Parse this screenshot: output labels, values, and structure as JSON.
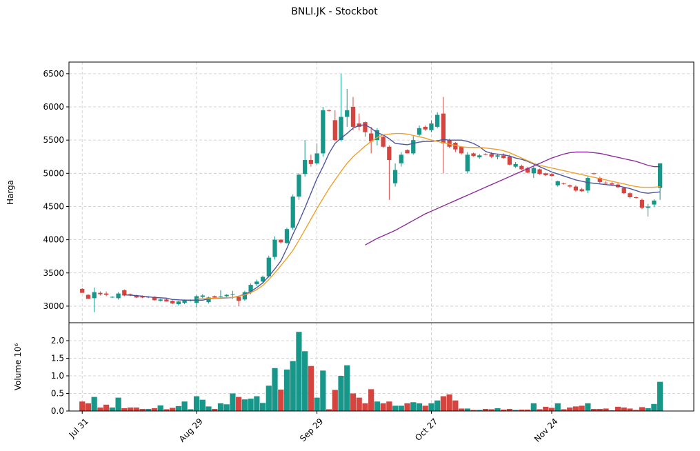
{
  "title": "BNLI.JK - Stockbot",
  "chart_data": [
    {
      "type": "candlestick",
      "ylabel": "Harga",
      "grid": true,
      "ylim": [
        2750,
        6675
      ],
      "yticks": [
        3000,
        3500,
        4000,
        4500,
        5000,
        5500,
        6000,
        6500
      ],
      "xlim": [
        -2.2,
        101.6
      ],
      "xticks": [
        {
          "value": 0,
          "label": "Jul 31"
        },
        {
          "value": 19,
          "label": "Aug 29"
        },
        {
          "value": 39,
          "label": "Sep 29"
        },
        {
          "value": 58,
          "label": "Oct 27"
        },
        {
          "value": 78,
          "label": "Nov 24"
        }
      ],
      "up_color": "#17968a",
      "down_color": "#d6443f",
      "open": [
        3260,
        3170,
        3120,
        3200,
        3190,
        3130,
        3120,
        3240,
        3180,
        3160,
        3150,
        3130,
        3140,
        3080,
        3100,
        3080,
        3030,
        3050,
        3080,
        3050,
        3140,
        3060,
        3150,
        3140,
        3150,
        3170,
        3140,
        3100,
        3220,
        3330,
        3370,
        3450,
        3740,
        4000,
        3950,
        4180,
        4650,
        4990,
        5200,
        5150,
        5300,
        5950,
        5800,
        5500,
        5850,
        6000,
        5750,
        5770,
        5600,
        5500,
        5550,
        5400,
        4850,
        5150,
        5350,
        5300,
        5580,
        5700,
        5650,
        5700,
        5900,
        5500,
        5460,
        5400,
        5030,
        5300,
        5240,
        5290,
        5290,
        5250,
        5270,
        5250,
        5100,
        5110,
        5080,
        5000,
        5060,
        5000,
        4990,
        4820,
        4850,
        4820,
        4800,
        4760,
        4740,
        5000,
        4930,
        4860,
        4850,
        4830,
        4780,
        4700,
        4640,
        4600,
        4480,
        4530,
        4780
      ],
      "high": [
        3270,
        3180,
        3280,
        3220,
        3220,
        3150,
        3210,
        3250,
        3190,
        3170,
        3160,
        3150,
        3150,
        3110,
        3110,
        3090,
        3080,
        3100,
        3100,
        3170,
        3180,
        3140,
        3160,
        3240,
        3180,
        3230,
        3150,
        3230,
        3340,
        3400,
        3460,
        3760,
        4050,
        4010,
        4180,
        4680,
        5000,
        5500,
        5280,
        5450,
        6000,
        5960,
        5950,
        6500,
        6270,
        6150,
        5900,
        5780,
        5700,
        5680,
        5580,
        5420,
        5150,
        5320,
        5360,
        5560,
        5720,
        5720,
        5800,
        5920,
        6150,
        5520,
        5470,
        5410,
        5320,
        5310,
        5290,
        5300,
        5320,
        5290,
        5300,
        5280,
        5170,
        5130,
        5100,
        5120,
        5070,
        5010,
        5000,
        4890,
        4860,
        4830,
        4820,
        4780,
        4960,
        5010,
        4950,
        4880,
        4870,
        4850,
        4790,
        4720,
        4650,
        4620,
        4540,
        4610,
        5150
      ],
      "low": [
        3200,
        3110,
        2910,
        3160,
        3150,
        3120,
        3100,
        3150,
        3150,
        3120,
        3120,
        3120,
        3080,
        3070,
        3070,
        3030,
        3010,
        3030,
        3070,
        2980,
        3120,
        3040,
        3120,
        3110,
        3130,
        3110,
        3000,
        3080,
        3180,
        3300,
        3340,
        3430,
        3700,
        3940,
        3940,
        4150,
        4600,
        4950,
        5100,
        5130,
        5250,
        5930,
        5480,
        5480,
        5700,
        5650,
        5650,
        5550,
        5300,
        5420,
        5380,
        4600,
        4800,
        5100,
        5300,
        5280,
        5560,
        5640,
        5620,
        5680,
        5000,
        5380,
        5320,
        5280,
        5000,
        5250,
        5220,
        5270,
        5230,
        5210,
        5220,
        5120,
        5080,
        5050,
        5000,
        4930,
        4980,
        4960,
        4950,
        4800,
        4830,
        4780,
        4720,
        4720,
        4700,
        4980,
        4850,
        4830,
        4810,
        4780,
        4690,
        4620,
        4620,
        4460,
        4350,
        4490,
        4600
      ],
      "close": [
        3200,
        3110,
        3210,
        3180,
        3170,
        3140,
        3190,
        3160,
        3160,
        3130,
        3130,
        3140,
        3090,
        3100,
        3070,
        3040,
        3070,
        3090,
        3090,
        3150,
        3160,
        3130,
        3130,
        3150,
        3170,
        3180,
        3080,
        3210,
        3320,
        3370,
        3440,
        3730,
        4000,
        3960,
        4160,
        4650,
        4980,
        5200,
        5140,
        5300,
        5950,
        5940,
        5500,
        5850,
        5950,
        5700,
        5700,
        5620,
        5480,
        5650,
        5400,
        5200,
        5050,
        5280,
        5300,
        5500,
        5680,
        5660,
        5750,
        5880,
        5450,
        5400,
        5360,
        5300,
        5280,
        5260,
        5270,
        5280,
        5250,
        5270,
        5230,
        5130,
        5140,
        5060,
        5010,
        5080,
        4990,
        4970,
        4960,
        4880,
        4840,
        4800,
        4740,
        4730,
        4930,
        4990,
        4870,
        4850,
        4830,
        4790,
        4700,
        4640,
        4630,
        4480,
        4500,
        4590,
        5150
      ],
      "lines": [
        {
          "color": "#4b55a0",
          "values": [
            null,
            null,
            null,
            null,
            null,
            null,
            null,
            3170,
            3165,
            3160,
            3150,
            3140,
            3130,
            3125,
            3120,
            3100,
            3095,
            3090,
            3090,
            3090,
            3090,
            3110,
            3115,
            3120,
            3125,
            3130,
            3150,
            3180,
            3220,
            3280,
            3350,
            3450,
            3560,
            3680,
            3870,
            4080,
            4270,
            4480,
            4700,
            4920,
            5100,
            5300,
            5450,
            5530,
            5600,
            5680,
            5720,
            5730,
            5680,
            5610,
            5580,
            5520,
            5450,
            5440,
            5430,
            5450,
            5470,
            5480,
            5480,
            5490,
            5510,
            5500,
            5500,
            5500,
            5480,
            5450,
            5400,
            5330,
            5300,
            5290,
            5280,
            5260,
            5230,
            5210,
            5180,
            5140,
            5100,
            5060,
            5020,
            4990,
            4960,
            4930,
            4900,
            4880,
            4860,
            4850,
            4840,
            4830,
            4820,
            4810,
            4790,
            4770,
            4740,
            4710,
            4700,
            4710,
            4720
          ]
        },
        {
          "color": "#f0a02a",
          "values": [
            null,
            null,
            null,
            null,
            null,
            null,
            null,
            null,
            null,
            null,
            null,
            null,
            null,
            null,
            null,
            null,
            null,
            null,
            null,
            3110,
            3110,
            3115,
            3120,
            3125,
            3130,
            3130,
            3150,
            3170,
            3200,
            3250,
            3310,
            3400,
            3500,
            3610,
            3720,
            3840,
            3990,
            4150,
            4310,
            4470,
            4620,
            4770,
            4900,
            5030,
            5150,
            5250,
            5330,
            5410,
            5480,
            5540,
            5580,
            5590,
            5600,
            5600,
            5590,
            5570,
            5550,
            5530,
            5500,
            5480,
            5460,
            5440,
            5420,
            5400,
            5390,
            5390,
            5390,
            5380,
            5370,
            5360,
            5340,
            5310,
            5270,
            5230,
            5190,
            5150,
            5120,
            5100,
            5080,
            5060,
            5040,
            5020,
            5000,
            4980,
            4960,
            4940,
            4920,
            4900,
            4880,
            4860,
            4840,
            4820,
            4800,
            4790,
            4790,
            4790,
            4800
          ]
        },
        {
          "color": "#8e2c9c",
          "values": [
            null,
            null,
            null,
            null,
            null,
            null,
            null,
            null,
            null,
            null,
            null,
            null,
            null,
            null,
            null,
            null,
            null,
            null,
            null,
            null,
            null,
            null,
            null,
            null,
            null,
            null,
            null,
            null,
            null,
            null,
            null,
            null,
            null,
            null,
            null,
            null,
            null,
            null,
            null,
            null,
            null,
            null,
            null,
            null,
            null,
            null,
            null,
            3920,
            3970,
            4020,
            4060,
            4100,
            4140,
            4190,
            4240,
            4290,
            4340,
            4390,
            4430,
            4470,
            4510,
            4550,
            4590,
            4630,
            4670,
            4710,
            4750,
            4790,
            4830,
            4870,
            4910,
            4950,
            4990,
            5030,
            5070,
            5110,
            5150,
            5190,
            5230,
            5260,
            5290,
            5310,
            5320,
            5320,
            5320,
            5310,
            5300,
            5280,
            5260,
            5240,
            5220,
            5200,
            5180,
            5150,
            5120,
            5100,
            5100
          ]
        }
      ]
    },
    {
      "type": "bar",
      "ylabel": "Volume  10⁶",
      "grid": true,
      "ylim": [
        0,
        2.51
      ],
      "yticks": [
        {
          "value": 0,
          "label": "0.0"
        },
        0.5,
        {
          "value": 1,
          "label": "1.0"
        },
        1.5,
        {
          "value": 2,
          "label": "2.0"
        }
      ],
      "values": [
        0.27,
        0.22,
        0.4,
        0.1,
        0.18,
        0.1,
        0.38,
        0.08,
        0.1,
        0.1,
        0.06,
        0.06,
        0.08,
        0.16,
        0.05,
        0.09,
        0.14,
        0.27,
        0.05,
        0.42,
        0.32,
        0.13,
        0.06,
        0.22,
        0.19,
        0.5,
        0.4,
        0.33,
        0.35,
        0.42,
        0.23,
        0.72,
        1.22,
        0.61,
        1.18,
        1.42,
        2.25,
        1.7,
        1.28,
        0.38,
        1.15,
        0.05,
        0.6,
        1.0,
        1.3,
        0.5,
        0.38,
        0.22,
        0.62,
        0.27,
        0.22,
        0.27,
        0.15,
        0.15,
        0.22,
        0.25,
        0.22,
        0.15,
        0.22,
        0.3,
        0.42,
        0.47,
        0.3,
        0.07,
        0.07,
        0.03,
        0.03,
        0.06,
        0.05,
        0.08,
        0.04,
        0.06,
        0.03,
        0.04,
        0.04,
        0.22,
        0.05,
        0.12,
        0.09,
        0.22,
        0.05,
        0.1,
        0.13,
        0.15,
        0.22,
        0.06,
        0.06,
        0.07,
        0.02,
        0.12,
        0.1,
        0.07,
        0.03,
        0.11,
        0.08,
        0.2,
        0.83
      ]
    }
  ]
}
